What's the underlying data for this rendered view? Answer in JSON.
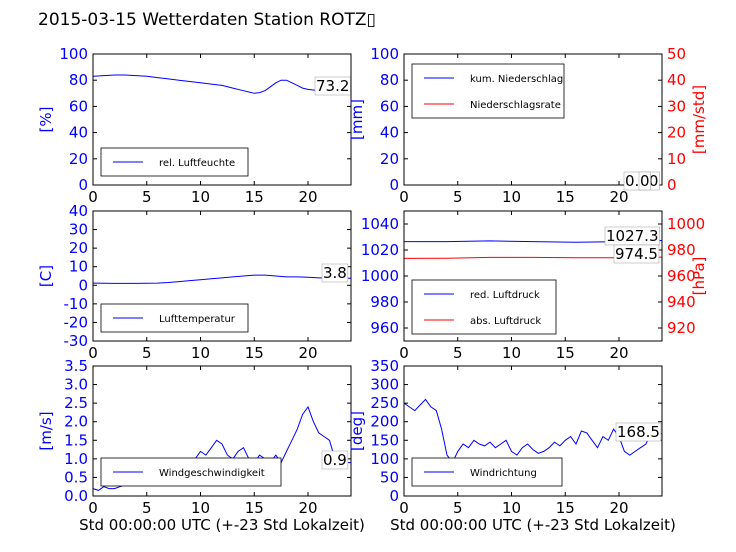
{
  "title": "2015-03-15 Wetterdaten Station ROTZ▯",
  "xlabel": "Std 00:00:00 UTC (+-23 Std Lokalzeit)",
  "colors": {
    "primary": "#0000ff",
    "secondary": "#ff0000",
    "light": "#8080ff",
    "text": "#000000"
  },
  "chart_data": [
    {
      "type": "line",
      "xlim": [
        0,
        24
      ],
      "xticks": [
        0,
        5,
        10,
        15,
        20
      ],
      "ylabel": "[%]",
      "ylim": [
        0,
        100
      ],
      "yticks": [
        0,
        20,
        40,
        60,
        80,
        100
      ],
      "series": [
        {
          "name": "rel. Luftfeuchte",
          "color": "#0000ff",
          "x": [
            0,
            1,
            2,
            3,
            4,
            5,
            6,
            7,
            8,
            9,
            10,
            11,
            12,
            13,
            14,
            14.5,
            15,
            15.5,
            16,
            16.5,
            17,
            17.5,
            18,
            18.5,
            19,
            19.5,
            20,
            20.5,
            21,
            21.5,
            22,
            22.5,
            23,
            23.5,
            24
          ],
          "y": [
            83,
            83.5,
            84,
            84,
            83.5,
            83,
            82,
            81,
            80,
            79,
            78,
            77,
            76,
            74,
            72,
            71,
            70,
            70.5,
            72,
            75,
            78,
            80,
            80,
            78,
            76,
            74,
            73,
            72.5,
            72,
            72,
            72,
            72.5,
            73,
            73.2,
            73.2
          ]
        }
      ],
      "current_label": "73.2",
      "legend_position": "lower-left"
    },
    {
      "type": "line",
      "xlim": [
        0,
        24
      ],
      "xticks": [
        0,
        5,
        10,
        15,
        20
      ],
      "ylabel": "[mm]",
      "ylim": [
        0,
        100
      ],
      "yticks": [
        0,
        20,
        40,
        60,
        80,
        100
      ],
      "ylabel_right": "[mm/std]",
      "ylim_right": [
        0,
        50
      ],
      "yticks_right": [
        0,
        10,
        20,
        30,
        40,
        50
      ],
      "series": [
        {
          "name": "kum. Niederschlag",
          "color": "#0000ff",
          "axis": "left",
          "x": [
            0,
            24
          ],
          "y": [
            0,
            0
          ]
        },
        {
          "name": "Niederschlagsrate",
          "color": "#ff0000",
          "axis": "right",
          "x": [
            0,
            24
          ],
          "y": [
            0,
            0
          ]
        }
      ],
      "current_label": "0.00",
      "current_label_right": "0",
      "legend_position": "upper-left"
    },
    {
      "type": "line",
      "xlim": [
        0,
        24
      ],
      "xticks": [
        0,
        5,
        10,
        15,
        20
      ],
      "ylabel": "[C]",
      "ylim": [
        -30,
        40
      ],
      "yticks": [
        -30,
        -20,
        -10,
        0,
        10,
        20,
        30,
        40
      ],
      "series": [
        {
          "name": "Lufttemperatur",
          "color": "#0000ff",
          "x": [
            0,
            1,
            2,
            3,
            4,
            5,
            6,
            7,
            8,
            9,
            10,
            11,
            12,
            13,
            14,
            15,
            16,
            17,
            18,
            19,
            20,
            21,
            22,
            23,
            24
          ],
          "y": [
            1.2,
            1.1,
            1.0,
            1.0,
            1.0,
            1.1,
            1.2,
            1.5,
            2.0,
            2.5,
            3.0,
            3.5,
            4.0,
            4.5,
            5.0,
            5.5,
            5.5,
            5.0,
            4.5,
            4.5,
            4.3,
            4.0,
            4.0,
            3.9,
            3.8
          ]
        }
      ],
      "current_label": "3.8",
      "legend_position": "lower-left"
    },
    {
      "type": "line",
      "xlim": [
        0,
        24
      ],
      "xticks": [
        0,
        5,
        10,
        15,
        20
      ],
      "ylim": [
        950,
        1050
      ],
      "yticks": [
        960,
        980,
        1000,
        1020,
        1040
      ],
      "ylabel_right": "[hPa]",
      "ylim_right": [
        910,
        1010
      ],
      "yticks_right": [
        920,
        940,
        960,
        980,
        1000
      ],
      "series": [
        {
          "name": "red. Luftdruck",
          "color": "#0000ff",
          "axis": "left",
          "x": [
            0,
            4,
            8,
            12,
            16,
            20,
            24
          ],
          "y": [
            1026.5,
            1026.5,
            1027,
            1026.5,
            1026,
            1026.5,
            1027.3
          ]
        },
        {
          "name": "abs. Luftdruck",
          "color": "#ff0000",
          "axis": "right",
          "x": [
            0,
            4,
            8,
            12,
            16,
            20,
            24
          ],
          "y": [
            973.5,
            973.7,
            974.3,
            974.3,
            974,
            974,
            974.5
          ]
        }
      ],
      "current_label": "1027.3",
      "current_label_right": "974.5",
      "legend_position": "lower-left"
    },
    {
      "type": "line",
      "xlim": [
        0,
        24
      ],
      "xticks": [
        0,
        5,
        10,
        15,
        20
      ],
      "ylabel": "[m/s]",
      "ylim": [
        0,
        3.5
      ],
      "yticks": [
        0.0,
        0.5,
        1.0,
        1.5,
        2.0,
        2.5,
        3.0,
        3.5
      ],
      "series": [
        {
          "name": "Windgeschwindigkeit",
          "color": "#0000ff",
          "x": [
            0,
            0.5,
            1,
            1.5,
            2,
            2.5,
            3,
            3.5,
            4,
            4.5,
            5,
            5.5,
            6,
            6.5,
            7,
            7.5,
            8,
            8.5,
            9,
            9.5,
            10,
            10.5,
            11,
            11.5,
            12,
            12.5,
            13,
            13.5,
            14,
            14.5,
            15,
            15.5,
            16,
            16.5,
            17,
            17.5,
            18,
            18.5,
            19,
            19.5,
            20,
            20.5,
            21,
            21.5,
            22,
            22.5,
            23,
            23.5,
            24
          ],
          "y": [
            0.2,
            0.15,
            0.25,
            0.2,
            0.2,
            0.25,
            0.3,
            0.4,
            0.5,
            0.6,
            0.7,
            0.8,
            0.75,
            0.8,
            0.9,
            0.85,
            0.9,
            0.8,
            0.9,
            1.0,
            1.2,
            1.1,
            1.3,
            1.5,
            1.4,
            1.1,
            1.0,
            1.2,
            1.3,
            1.0,
            0.9,
            1.1,
            1.0,
            0.9,
            1.1,
            0.9,
            1.2,
            1.5,
            1.8,
            2.2,
            2.4,
            2.0,
            1.7,
            1.6,
            1.5,
            1.0,
            1.1,
            0.9,
            0.9
          ]
        },
        {
          "name": "",
          "color": "#8080ff",
          "x": [
            2,
            4,
            6,
            8,
            10,
            12,
            14,
            16,
            17.5
          ],
          "y": [
            0.35,
            0.45,
            0.65,
            0.75,
            0.8,
            0.85,
            0.8,
            0.75,
            0.7
          ]
        }
      ],
      "current_label": "0.9",
      "legend_position": "lower-left"
    },
    {
      "type": "line",
      "xlim": [
        0,
        24
      ],
      "xticks": [
        0,
        5,
        10,
        15,
        20
      ],
      "ylabel": "[deg]",
      "ylim": [
        0,
        350
      ],
      "yticks": [
        0,
        50,
        100,
        150,
        200,
        250,
        300,
        350
      ],
      "series": [
        {
          "name": "Windrichtung",
          "color": "#0000ff",
          "x": [
            0,
            0.5,
            1,
            1.5,
            2,
            2.5,
            3,
            3.5,
            4,
            4.5,
            5,
            5.5,
            6,
            6.5,
            7,
            7.5,
            8,
            8.5,
            9,
            9.5,
            10,
            10.5,
            11,
            11.5,
            12,
            12.5,
            13,
            13.5,
            14,
            14.5,
            15,
            15.5,
            16,
            16.5,
            17,
            17.5,
            18,
            18.5,
            19,
            19.5,
            20,
            20.5,
            21,
            21.5,
            22,
            22.5,
            23,
            23.5,
            24
          ],
          "y": [
            250,
            240,
            230,
            245,
            260,
            240,
            230,
            180,
            110,
            90,
            120,
            140,
            130,
            150,
            140,
            135,
            145,
            130,
            140,
            150,
            120,
            110,
            130,
            140,
            125,
            115,
            120,
            130,
            145,
            135,
            150,
            160,
            140,
            175,
            170,
            150,
            130,
            160,
            150,
            180,
            160,
            120,
            110,
            120,
            130,
            140,
            170,
            165,
            168.5
          ]
        },
        {
          "name": "",
          "color": "#8080ff",
          "x": [
            5,
            7,
            9,
            11,
            13,
            14.5
          ],
          "y": [
            90,
            95,
            100,
            95,
            92,
            95
          ]
        }
      ],
      "current_label": "168.5",
      "legend_position": "lower-left"
    }
  ]
}
